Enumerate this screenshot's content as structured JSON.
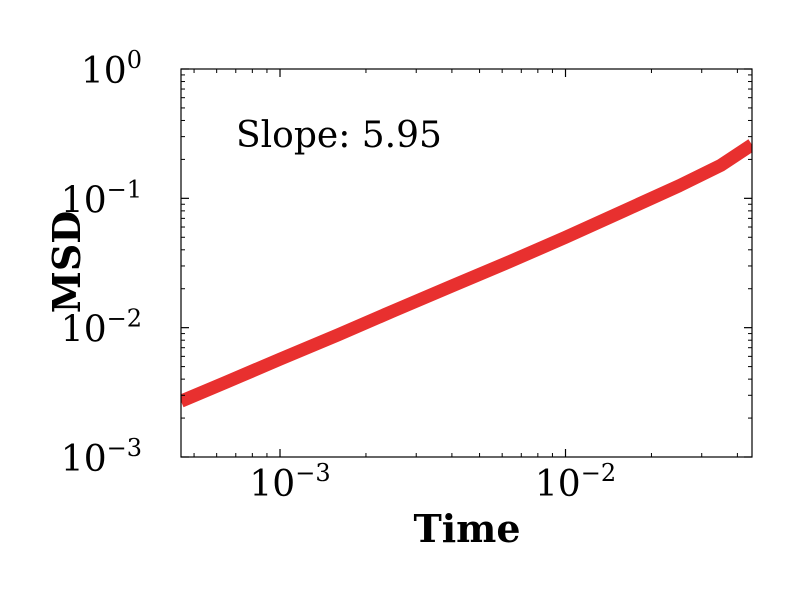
{
  "chart_data": {
    "type": "line",
    "title": "",
    "xlabel": "Time",
    "ylabel": "MSD",
    "xscale": "log",
    "yscale": "log",
    "xlim": [
      0.00045,
      0.045
    ],
    "ylim": [
      0.001,
      1
    ],
    "grid": false,
    "annotation": "Slope: 5.95",
    "x_ticks": [
      {
        "base": "10",
        "exp": "−3",
        "value": 0.001
      },
      {
        "base": "10",
        "exp": "−2",
        "value": 0.01
      }
    ],
    "y_ticks": [
      {
        "base": "10",
        "exp": "−3",
        "value": 0.001
      },
      {
        "base": "10",
        "exp": "−2",
        "value": 0.01
      },
      {
        "base": "10",
        "exp": "−1",
        "value": 0.1
      },
      {
        "base": "10",
        "exp": "0",
        "value": 1
      }
    ],
    "series": [
      {
        "color": "#e8302f",
        "x": [
          0.00045,
          0.00065,
          0.001,
          0.0016,
          0.0025,
          0.004,
          0.0063,
          0.01,
          0.016,
          0.025,
          0.035,
          0.045
        ],
        "y": [
          0.0027,
          0.0038,
          0.0057,
          0.0088,
          0.0135,
          0.021,
          0.032,
          0.05,
          0.08,
          0.125,
          0.18,
          0.26
        ]
      }
    ]
  }
}
